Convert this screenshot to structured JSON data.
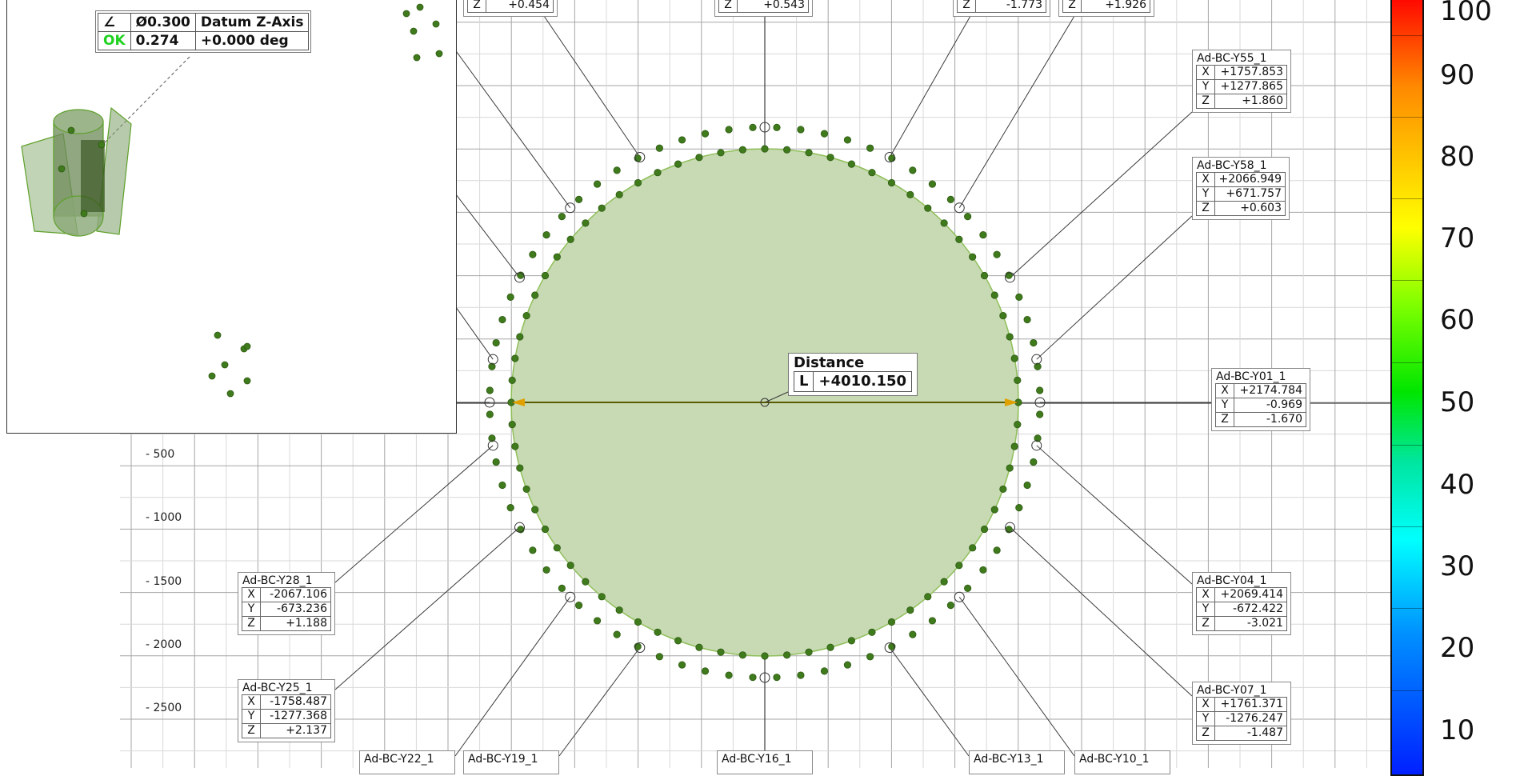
{
  "axis": {
    "y_labels": [
      {
        "value": "- 500",
        "y": 572
      },
      {
        "value": "- 1000",
        "y": 651
      },
      {
        "value": "- 1500",
        "y": 731
      },
      {
        "value": "- 2000",
        "y": 810
      },
      {
        "value": "- 2500",
        "y": 889
      }
    ]
  },
  "datum_tolerance": {
    "symbol": "∠",
    "tolerance": "Ø0.300",
    "datum": "Datum Z-Axis",
    "status": "OK",
    "measured": "0.274",
    "angle": "+0.000 deg"
  },
  "distance": {
    "title": "Distance",
    "axis": "L",
    "value": "+4010.150"
  },
  "points": [
    {
      "id": "top1",
      "name": "",
      "x": "",
      "y": "",
      "z": "+0.454"
    },
    {
      "id": "top2",
      "name": "",
      "x": "",
      "y": "",
      "z": "+0.543"
    },
    {
      "id": "top3",
      "name": "",
      "x": "",
      "y": "",
      "z": "-1.773"
    },
    {
      "id": "top4",
      "name": "",
      "x": "",
      "y": "",
      "z": "+1.926"
    },
    {
      "id": "y55",
      "name": "Ad-BC-Y55_1",
      "x": "+1757.853",
      "y": "+1277.865",
      "z": "+1.860"
    },
    {
      "id": "y58",
      "name": "Ad-BC-Y58_1",
      "x": "+2066.949",
      "y": "+671.757",
      "z": "+0.603"
    },
    {
      "id": "y01",
      "name": "Ad-BC-Y01_1",
      "x": "+2174.784",
      "y": "-0.969",
      "z": "-1.670"
    },
    {
      "id": "y04",
      "name": "Ad-BC-Y04_1",
      "x": "+2069.414",
      "y": "-672.422",
      "z": "-3.021"
    },
    {
      "id": "y07",
      "name": "Ad-BC-Y07_1",
      "x": "+1761.371",
      "y": "-1276.247",
      "z": "-1.487"
    },
    {
      "id": "y28",
      "name": "Ad-BC-Y28_1",
      "x": "-2067.106",
      "y": "-673.236",
      "z": "+1.188"
    },
    {
      "id": "y25",
      "name": "Ad-BC-Y25_1",
      "x": "-1758.487",
      "y": "-1277.368",
      "z": "+2.137"
    },
    {
      "id": "y22",
      "name": "Ad-BC-Y22_1"
    },
    {
      "id": "y19",
      "name": "Ad-BC-Y19_1"
    },
    {
      "id": "y16",
      "name": "Ad-BC-Y16_1"
    },
    {
      "id": "y13",
      "name": "Ad-BC-Y13_1"
    },
    {
      "id": "y10",
      "name": "Ad-BC-Y10_1"
    }
  ],
  "colorbar": {
    "labels": [
      "100",
      "90",
      "80",
      "70",
      "60",
      "50",
      "40",
      "30",
      "20",
      "10"
    ]
  },
  "colors": {
    "circle_fill": "#c8dab3",
    "circle_edge": "#8fbf5a",
    "point": "#3f7a1c",
    "ok": "#1fd21f",
    "distance_arrow": "#e0a000"
  }
}
